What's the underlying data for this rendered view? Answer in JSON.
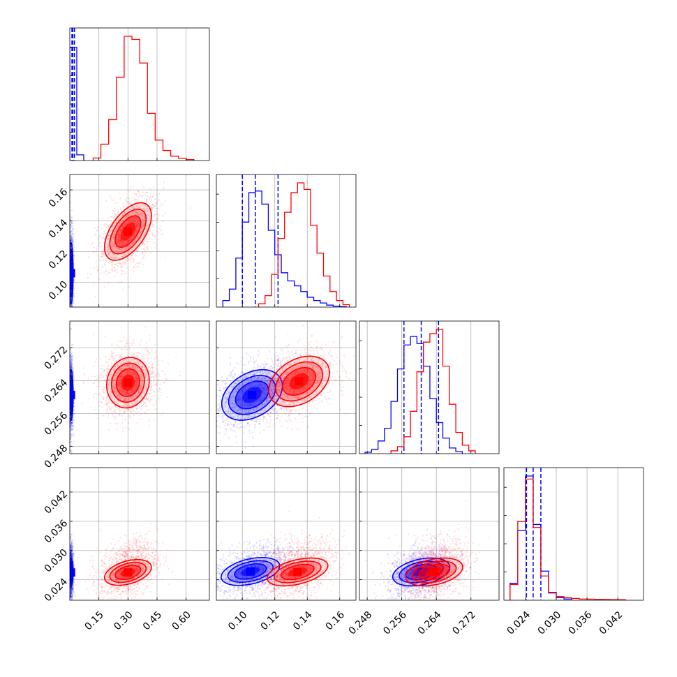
{
  "colors": {
    "series_a": "#0000ff",
    "series_b": "#ff0000",
    "grid": "#b0b0b0"
  },
  "chart_data": {
    "type": "corner",
    "grid": true,
    "legend": "none",
    "parameters": [
      {
        "range": [
          0.0,
          0.72
        ],
        "ticks": [
          0.15,
          0.3,
          0.45,
          0.6
        ],
        "tick_labels": [
          "0.15",
          "0.30",
          "0.45",
          "0.60"
        ]
      },
      {
        "range": [
          0.084,
          0.17
        ],
        "ticks": [
          0.1,
          0.12,
          0.14,
          0.16
        ],
        "tick_labels": [
          "0.10",
          "0.12",
          "0.14",
          "0.16"
        ]
      },
      {
        "range": [
          0.2462,
          0.2785
        ],
        "ticks": [
          0.248,
          0.256,
          0.264,
          0.272
        ],
        "tick_labels": [
          "0.248",
          "0.256",
          "0.264",
          "0.272"
        ]
      },
      {
        "range": [
          0.0198,
          0.047
        ],
        "ticks": [
          0.024,
          0.03,
          0.036,
          0.042
        ],
        "tick_labels": [
          "0.024",
          "0.030",
          "0.036",
          "0.042"
        ]
      }
    ],
    "y_tick_labels": [
      null,
      [
        "0.10",
        "0.12",
        "0.14",
        "0.16"
      ],
      [
        "0.248",
        "0.256",
        "0.264",
        "0.272"
      ],
      [
        "0.024",
        "0.030",
        "0.036",
        "0.042"
      ]
    ],
    "series": [
      {
        "color": "#0000ff",
        "quantiles": [
          [
            0.011,
            0.016,
            0.024
          ],
          [
            0.1,
            0.108,
            0.122
          ],
          [
            0.2565,
            0.2605,
            0.2645
          ],
          [
            0.0242,
            0.0255,
            0.027
          ]
        ],
        "hist": [
          {
            "edges": [
              0.0,
              0.036,
              0.072
            ],
            "counts": [
              3600,
              180
            ]
          },
          {
            "edges": [
              0.088,
              0.092,
              0.096,
              0.1,
              0.104,
              0.108,
              0.112,
              0.116,
              0.12,
              0.124,
              0.128,
              0.132,
              0.136,
              0.14,
              0.144,
              0.148,
              0.152,
              0.156,
              0.16,
              0.164
            ],
            "counts": [
              40,
              110,
              300,
              520,
              700,
              710,
              630,
              470,
              320,
              210,
              160,
              130,
              95,
              60,
              40,
              25,
              12,
              6,
              3
            ]
          },
          {
            "edges": [
              0.2475,
              0.249,
              0.2505,
              0.252,
              0.2535,
              0.255,
              0.2565,
              0.258,
              0.2595,
              0.261,
              0.2625,
              0.264,
              0.2655,
              0.267,
              0.2685,
              0.27
            ],
            "counts": [
              10,
              30,
              90,
              180,
              370,
              600,
              770,
              830,
              780,
              620,
              390,
              220,
              110,
              40,
              15
            ]
          },
          {
            "edges": [
              0.021,
              0.0225,
              0.024,
              0.0255,
              0.027,
              0.0285,
              0.03,
              0.0315,
              0.033
            ],
            "counts": [
              280,
              1150,
              2050,
              1250,
              480,
              120,
              45,
              20
            ]
          }
        ],
        "scatter": [
          {
            "x": 0,
            "y": 1,
            "center": [
              0.006,
              0.106
            ],
            "spread": [
              0.006,
              0.014
            ],
            "rho": 0.0
          },
          {
            "x": 0,
            "y": 2,
            "center": [
              0.006,
              0.2605
            ],
            "spread": [
              0.006,
              0.0045
            ],
            "rho": 0.0
          },
          {
            "x": 0,
            "y": 3,
            "center": [
              0.006,
              0.0255
            ],
            "spread": [
              0.006,
              0.0028
            ],
            "rho": 0.0
          },
          {
            "x": 1,
            "y": 2,
            "center": [
              0.106,
              0.2605
            ],
            "spread": [
              0.012,
              0.004
            ],
            "rho": 0.35
          },
          {
            "x": 1,
            "y": 3,
            "center": [
              0.106,
              0.0258
            ],
            "spread": [
              0.012,
              0.0026
            ],
            "rho": 0.35
          },
          {
            "x": 2,
            "y": 3,
            "center": [
              0.2605,
              0.0255
            ],
            "spread": [
              0.0038,
              0.0025
            ],
            "rho": 0.3
          }
        ],
        "contours": [
          {
            "x": 0,
            "y": 1,
            "center": [
              0.006,
              0.106
            ],
            "spread": [
              0.005,
              0.009
            ],
            "rho": 0.0
          },
          {
            "x": 0,
            "y": 2,
            "center": [
              0.006,
              0.2605
            ],
            "spread": [
              0.005,
              0.0028
            ],
            "rho": 0.0
          },
          {
            "x": 0,
            "y": 3,
            "center": [
              0.006,
              0.0255
            ],
            "spread": [
              0.005,
              0.0013
            ],
            "rho": 0.0
          },
          {
            "x": 1,
            "y": 2,
            "center": [
              0.106,
              0.2605
            ],
            "spread": [
              0.0085,
              0.0028
            ],
            "rho": 0.35
          },
          {
            "x": 1,
            "y": 3,
            "center": [
              0.105,
              0.0257
            ],
            "spread": [
              0.0082,
              0.0013
            ],
            "rho": 0.4
          },
          {
            "x": 2,
            "y": 3,
            "center": [
              0.2605,
              0.0256
            ],
            "spread": [
              0.003,
              0.0013
            ],
            "rho": 0.35
          }
        ]
      },
      {
        "color": "#ff0000",
        "quantiles": [
          null,
          null,
          null,
          null
        ],
        "hist": [
          {
            "edges": [
              0.1205,
              0.1605,
              0.2005,
              0.2405,
              0.2805,
              0.3205,
              0.3605,
              0.4005,
              0.4405,
              0.4805,
              0.5205,
              0.5605,
              0.6005,
              0.6405
            ],
            "counts": [
              80,
              520,
              1300,
              2650,
              3950,
              3850,
              3100,
              1500,
              650,
              320,
              140,
              70,
              30
            ]
          },
          {
            "edges": [
              0.11,
              0.114,
              0.118,
              0.122,
              0.126,
              0.13,
              0.134,
              0.138,
              0.142,
              0.146,
              0.15,
              0.154,
              0.158,
              0.162,
              0.166
            ],
            "counts": [
              20,
              70,
              200,
              420,
              580,
              700,
              760,
              720,
              500,
              330,
              190,
              95,
              40,
              15
            ]
          },
          {
            "edges": [
              0.2535,
              0.255,
              0.2565,
              0.258,
              0.2595,
              0.261,
              0.2625,
              0.264,
              0.2655,
              0.267,
              0.2685,
              0.27,
              0.2715,
              0.273
            ],
            "counts": [
              20,
              50,
              120,
              300,
              580,
              790,
              850,
              880,
              620,
              350,
              150,
              60,
              20
            ]
          },
          {
            "edges": [
              0.021,
              0.0225,
              0.024,
              0.0255,
              0.027,
              0.0285,
              0.03,
              0.0315,
              0.033,
              0.0345,
              0.036,
              0.0375,
              0.039,
              0.0405,
              0.042,
              0.0435
            ],
            "counts": [
              260,
              1300,
              2000,
              1200,
              400,
              130,
              60,
              40,
              30,
              20,
              18,
              15,
              12,
              10,
              8
            ]
          }
        ],
        "scatter": [
          {
            "x": 0,
            "y": 1,
            "center": [
              0.3,
              0.132
            ],
            "spread": [
              0.075,
              0.012
            ],
            "rho": 0.5
          },
          {
            "x": 0,
            "y": 2,
            "center": [
              0.3,
              0.2635
            ],
            "spread": [
              0.075,
              0.004
            ],
            "rho": 0.1
          },
          {
            "x": 0,
            "y": 3,
            "center": [
              0.3,
              0.0262
            ],
            "spread": [
              0.075,
              0.003
            ],
            "rho": 0.35
          },
          {
            "x": 1,
            "y": 2,
            "center": [
              0.133,
              0.2635
            ],
            "spread": [
              0.012,
              0.004
            ],
            "rho": 0.35
          },
          {
            "x": 1,
            "y": 3,
            "center": [
              0.133,
              0.0262
            ],
            "spread": [
              0.012,
              0.003
            ],
            "rho": 0.4
          },
          {
            "x": 2,
            "y": 3,
            "center": [
              0.2635,
              0.0262
            ],
            "spread": [
              0.0038,
              0.003
            ],
            "rho": 0.3
          }
        ],
        "contours": [
          {
            "x": 0,
            "y": 1,
            "center": [
              0.3,
              0.133
            ],
            "spread": [
              0.055,
              0.0085
            ],
            "rho": 0.55
          },
          {
            "x": 0,
            "y": 2,
            "center": [
              0.3,
              0.2635
            ],
            "spread": [
              0.05,
              0.0028
            ],
            "rho": 0.1
          },
          {
            "x": 0,
            "y": 3,
            "center": [
              0.3,
              0.0255
            ],
            "spread": [
              0.055,
              0.0012
            ],
            "rho": 0.4
          },
          {
            "x": 1,
            "y": 2,
            "center": [
              0.135,
              0.2638
            ],
            "spread": [
              0.0085,
              0.0028
            ],
            "rho": 0.35
          },
          {
            "x": 1,
            "y": 3,
            "center": [
              0.134,
              0.0256
            ],
            "spread": [
              0.0085,
              0.0013
            ],
            "rho": 0.45
          },
          {
            "x": 2,
            "y": 3,
            "center": [
              0.2635,
              0.0256
            ],
            "spread": [
              0.003,
              0.0013
            ],
            "rho": 0.35
          }
        ]
      }
    ]
  }
}
